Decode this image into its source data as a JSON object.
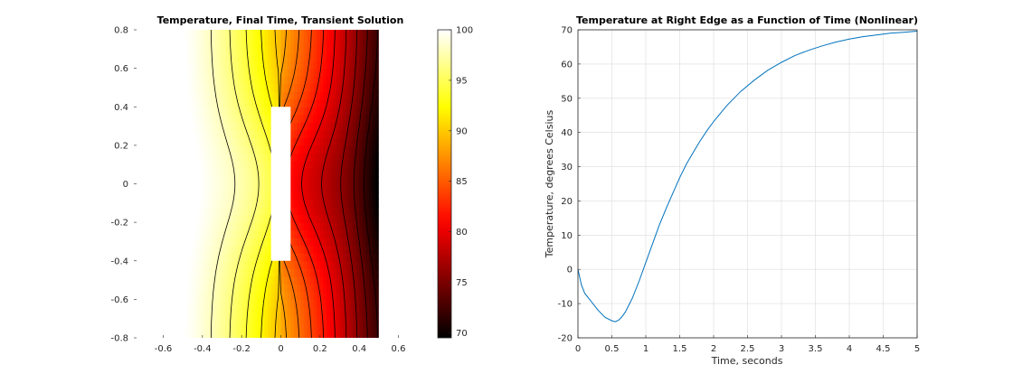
{
  "chart_data": [
    {
      "type": "heatmap",
      "title": "Temperature, Final Time, Transient Solution",
      "xlabel": "",
      "ylabel": "",
      "xlim": [
        -0.75,
        0.75
      ],
      "ylim": [
        -0.8,
        0.8
      ],
      "x_ticks": [
        "-0.6",
        "-0.4",
        "-0.2",
        "0",
        "0.2",
        "0.4",
        "0.6"
      ],
      "x_tick_values": [
        -0.6,
        -0.4,
        -0.2,
        0,
        0.2,
        0.4,
        0.6
      ],
      "y_ticks": [
        "0.8",
        "0.6",
        "0.4",
        "0.2",
        "0",
        "-0.2",
        "-0.4",
        "-0.6",
        "-0.8"
      ],
      "y_tick_values": [
        0.8,
        0.6,
        0.4,
        0.2,
        0,
        -0.2,
        -0.4,
        -0.6,
        -0.8
      ],
      "domain": {
        "x": [
          -0.5,
          0.5
        ],
        "y": [
          -0.8,
          0.8
        ]
      },
      "slot": {
        "x": [
          -0.05,
          0.05
        ],
        "y": [
          -0.4,
          0.4
        ]
      },
      "colormap": "hot",
      "colorbar": {
        "range": [
          69.5,
          100
        ],
        "ticks": [
          "100",
          "95",
          "90",
          "85",
          "80",
          "75",
          "70"
        ],
        "tick_values": [
          100,
          95,
          90,
          85,
          80,
          75,
          70
        ]
      },
      "contour_levels": [
        72,
        74,
        76,
        78,
        80,
        82,
        84,
        86,
        88,
        90,
        92,
        94,
        96,
        98
      ]
    },
    {
      "type": "line",
      "title": "Temperature at Right Edge as a Function of Time (Nonlinear)",
      "xlabel": "Time, seconds",
      "ylabel": "Temperature, degrees Celsius",
      "xlim": [
        0,
        5
      ],
      "ylim": [
        -20,
        70
      ],
      "grid": true,
      "x_ticks": [
        "0",
        "0.5",
        "1",
        "1.5",
        "2",
        "2.5",
        "3",
        "3.5",
        "4",
        "4.5",
        "5"
      ],
      "x_tick_values": [
        0,
        0.5,
        1,
        1.5,
        2,
        2.5,
        3,
        3.5,
        4,
        4.5,
        5
      ],
      "y_ticks": [
        "70",
        "60",
        "50",
        "40",
        "30",
        "20",
        "10",
        "0",
        "-10",
        "-20"
      ],
      "y_tick_values": [
        70,
        60,
        50,
        40,
        30,
        20,
        10,
        0,
        -10,
        -20
      ],
      "series": [
        {
          "color": "#0072BD",
          "x": [
            0,
            0.05,
            0.1,
            0.2,
            0.3,
            0.4,
            0.5,
            0.55,
            0.6,
            0.65,
            0.7,
            0.8,
            0.9,
            1.0,
            1.1,
            1.2,
            1.3,
            1.4,
            1.5,
            1.6,
            1.7,
            1.8,
            1.9,
            2.0,
            2.2,
            2.4,
            2.6,
            2.8,
            3.0,
            3.2,
            3.4,
            3.6,
            3.8,
            4.0,
            4.2,
            4.4,
            4.6,
            4.8,
            5.0
          ],
          "y": [
            0,
            -4.5,
            -7,
            -9.5,
            -12,
            -14,
            -15,
            -15.3,
            -14.8,
            -13.8,
            -12.4,
            -8.5,
            -3.5,
            2,
            7.5,
            13,
            17.8,
            22.3,
            26.8,
            30.8,
            34.2,
            37.5,
            40.5,
            43.2,
            48,
            52,
            55.3,
            58.2,
            60.5,
            62.5,
            64,
            65.3,
            66.4,
            67.3,
            68,
            68.5,
            69,
            69.3,
            69.6
          ]
        }
      ]
    }
  ]
}
